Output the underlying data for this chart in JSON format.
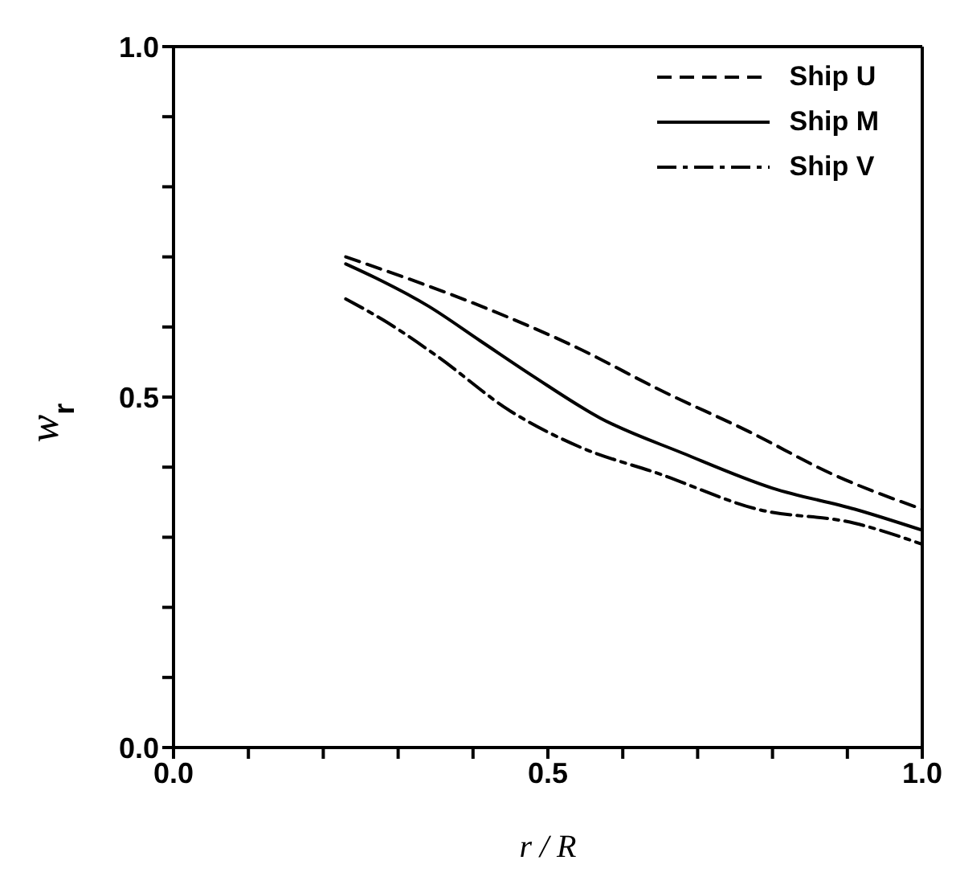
{
  "chart_data": {
    "type": "line",
    "xlabel": "r / R",
    "ylabel": "w$_{r}$",
    "xlim": [
      0,
      1
    ],
    "ylim": [
      0,
      1
    ],
    "xticks": [
      {
        "value": 0,
        "label": "0.0"
      },
      {
        "value": 0.1,
        "label": null
      },
      {
        "value": 0.2,
        "label": null
      },
      {
        "value": 0.3,
        "label": null
      },
      {
        "value": 0.4,
        "label": null
      },
      {
        "value": 0.5,
        "label": "0.5"
      },
      {
        "value": 0.6,
        "label": null
      },
      {
        "value": 0.7,
        "label": null
      },
      {
        "value": 0.8,
        "label": null
      },
      {
        "value": 0.9,
        "label": null
      },
      {
        "value": 1,
        "label": "1.0"
      }
    ],
    "yticks": [
      {
        "value": 0,
        "label": "0.0"
      },
      {
        "value": 0.1,
        "label": null
      },
      {
        "value": 0.2,
        "label": null
      },
      {
        "value": 0.3,
        "label": null
      },
      {
        "value": 0.4,
        "label": null
      },
      {
        "value": 0.5,
        "label": "0.5"
      },
      {
        "value": 0.6,
        "label": null
      },
      {
        "value": 0.7,
        "label": null
      },
      {
        "value": 0.8,
        "label": null
      },
      {
        "value": 0.9,
        "label": null
      },
      {
        "value": 1,
        "label": "1.0"
      }
    ],
    "grid": false,
    "legend": "top right",
    "marker": "none",
    "series": [
      {
        "name": "Ship U",
        "color": "#000000",
        "line_style": "dashed",
        "x": [
          0.23,
          0.41,
          0.54,
          0.65,
          0.77,
          0.88,
          1.0
        ],
        "values": [
          0.7,
          0.63,
          0.57,
          0.51,
          0.45,
          0.39,
          0.34
        ]
      },
      {
        "name": "Ship M",
        "color": "#000000",
        "line_style": "solid",
        "x": [
          0.23,
          0.27,
          0.34,
          0.41,
          0.48,
          0.57,
          0.68,
          0.8,
          0.91,
          1.0
        ],
        "values": [
          0.69,
          0.67,
          0.63,
          0.58,
          0.53,
          0.47,
          0.42,
          0.37,
          0.34,
          0.31
        ]
      },
      {
        "name": "Ship V",
        "color": "#000000",
        "line_style": "dashdot",
        "x": [
          0.23,
          0.28,
          0.35,
          0.45,
          0.54,
          0.65,
          0.78,
          0.91,
          1.0
        ],
        "values": [
          0.64,
          0.61,
          0.56,
          0.48,
          0.43,
          0.39,
          0.34,
          0.32,
          0.29
        ]
      }
    ]
  }
}
